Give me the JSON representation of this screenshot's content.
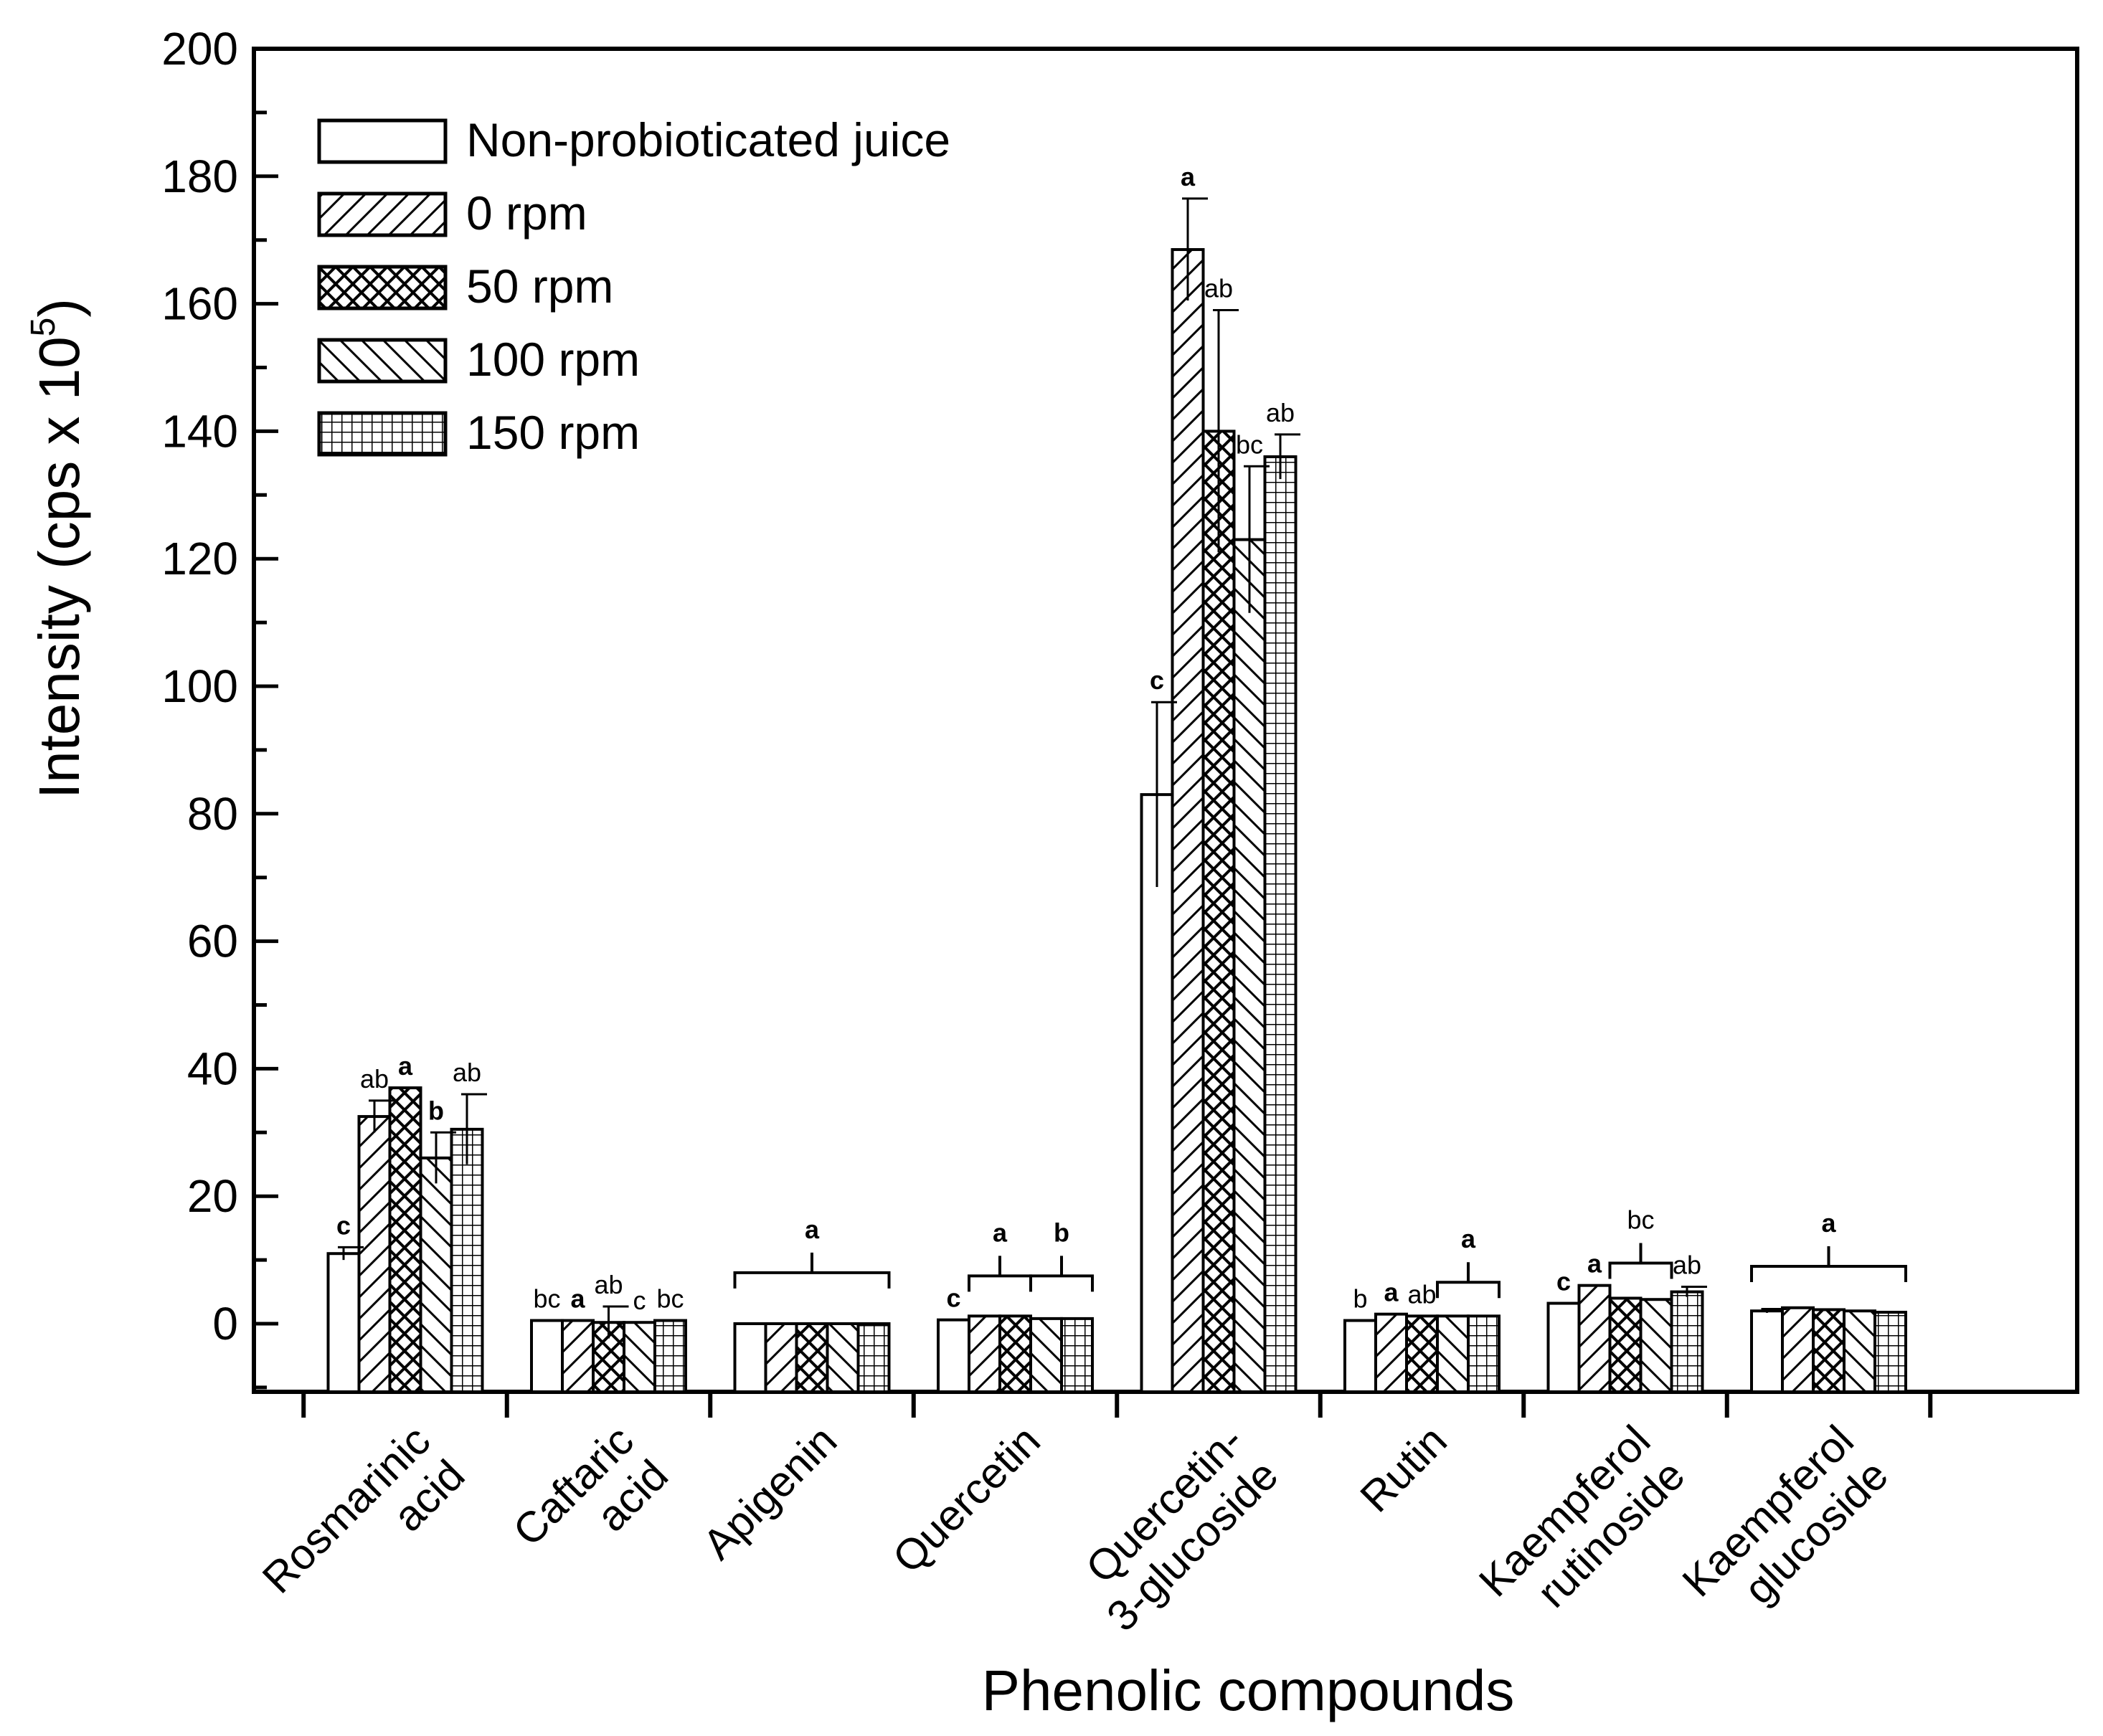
{
  "chart_data": {
    "type": "bar",
    "xlabel": "Phenolic compounds",
    "ylabel": "Intensity (cps x 10",
    "ylabel_sup": "5",
    "ylabel_close": ")",
    "ylim": [
      -10,
      200
    ],
    "yticks": [
      0,
      20,
      40,
      60,
      80,
      100,
      120,
      140,
      160,
      180,
      200
    ],
    "categories": [
      [
        "Rosmarinic",
        "acid"
      ],
      [
        "Caftaric",
        "acid"
      ],
      [
        "Apigenin"
      ],
      [
        "Quercetin"
      ],
      [
        "Quercetin-",
        "3-glucoside"
      ],
      [
        "Rutin"
      ],
      [
        "Kaempferol",
        "rutinoside"
      ],
      [
        "Kaempferol",
        "glucoside"
      ]
    ],
    "series": [
      {
        "name": "Non-probioticated juice",
        "pattern": "none",
        "values": [
          11,
          0.5,
          0,
          0.6,
          83,
          0.5,
          3.2,
          2
        ],
        "errors": [
          1,
          0,
          0,
          0,
          14.5,
          0,
          0,
          0.3
        ]
      },
      {
        "name": "0 rpm",
        "pattern": "hatch",
        "values": [
          32.5,
          0.5,
          0,
          1.2,
          168.5,
          1.5,
          6,
          2.5
        ],
        "errors": [
          2.5,
          0,
          0,
          0,
          8,
          0,
          0,
          0
        ]
      },
      {
        "name": "50 rpm",
        "pattern": "cross",
        "values": [
          37,
          0.2,
          0,
          1.2,
          140,
          1.2,
          4,
          2.2
        ],
        "errors": [
          0,
          2.5,
          0,
          0,
          19,
          0,
          0,
          0
        ]
      },
      {
        "name": "100 rpm",
        "pattern": "backhatch",
        "values": [
          26,
          0.2,
          0,
          0.8,
          123,
          1.2,
          3.8,
          2
        ],
        "errors": [
          4,
          0,
          0,
          0,
          11.5,
          0,
          0,
          0
        ]
      },
      {
        "name": "150 rpm",
        "pattern": "grid",
        "values": [
          30.5,
          0.5,
          0,
          0.8,
          136,
          1.2,
          5,
          1.8
        ],
        "errors": [
          5.5,
          0,
          0,
          0,
          3.5,
          0,
          0.8,
          0
        ]
      }
    ],
    "letters": [
      {
        "text": "c",
        "cat": 0,
        "bar": 0,
        "bold": true
      },
      {
        "text": "ab",
        "cat": 0,
        "bar": 1,
        "bold": false
      },
      {
        "text": "a",
        "cat": 0,
        "bar": 2,
        "bold": true
      },
      {
        "text": "b",
        "cat": 0,
        "bar": 3,
        "bold": true
      },
      {
        "text": "ab",
        "cat": 0,
        "bar": 4,
        "bold": false
      },
      {
        "text": "bc",
        "cat": 1,
        "bar": 0,
        "bold": false
      },
      {
        "text": "a",
        "cat": 1,
        "bar": 1,
        "bold": true
      },
      {
        "text": "ab",
        "cat": 1,
        "bar": 2,
        "bold": false
      },
      {
        "text": "c",
        "cat": 1,
        "bar": 3,
        "bold": false
      },
      {
        "text": "bc",
        "cat": 1,
        "bar": 4,
        "bold": false
      },
      {
        "text": "c",
        "cat": 3,
        "bar": 0,
        "bold": true
      },
      {
        "text": "c",
        "cat": 4,
        "bar": 0,
        "bold": true
      },
      {
        "text": "a",
        "cat": 4,
        "bar": 1,
        "bold": true
      },
      {
        "text": "ab",
        "cat": 4,
        "bar": 2,
        "bold": false
      },
      {
        "text": "bc",
        "cat": 4,
        "bar": 3,
        "bold": false
      },
      {
        "text": "ab",
        "cat": 4,
        "bar": 4,
        "bold": false
      },
      {
        "text": "b",
        "cat": 5,
        "bar": 0,
        "bold": false
      },
      {
        "text": "a",
        "cat": 5,
        "bar": 1,
        "bold": true
      },
      {
        "text": "ab",
        "cat": 5,
        "bar": 2,
        "bold": false
      },
      {
        "text": "c",
        "cat": 6,
        "bar": 0,
        "bold": true
      },
      {
        "text": "a",
        "cat": 6,
        "bar": 1,
        "bold": true
      },
      {
        "text": "ab",
        "cat": 6,
        "bar": 4,
        "bold": false
      }
    ],
    "group_brackets": [
      {
        "text": "a",
        "cat": 2,
        "from": 0,
        "to": 4,
        "level": 8,
        "bold": true
      },
      {
        "text": "a",
        "cat": 3,
        "from": 1,
        "to": 2,
        "level": 7.5,
        "bold": true
      },
      {
        "text": "b",
        "cat": 3,
        "from": 3,
        "to": 4,
        "level": 7.5,
        "bold": true
      },
      {
        "text": "a",
        "cat": 5,
        "from": 3,
        "to": 4,
        "level": 6.5,
        "bold": true
      },
      {
        "text": "bc",
        "cat": 6,
        "from": 2,
        "to": 3,
        "level": 9.5,
        "bold": false
      },
      {
        "text": "a",
        "cat": 7,
        "from": 0,
        "to": 4,
        "level": 9,
        "bold": true
      }
    ]
  }
}
